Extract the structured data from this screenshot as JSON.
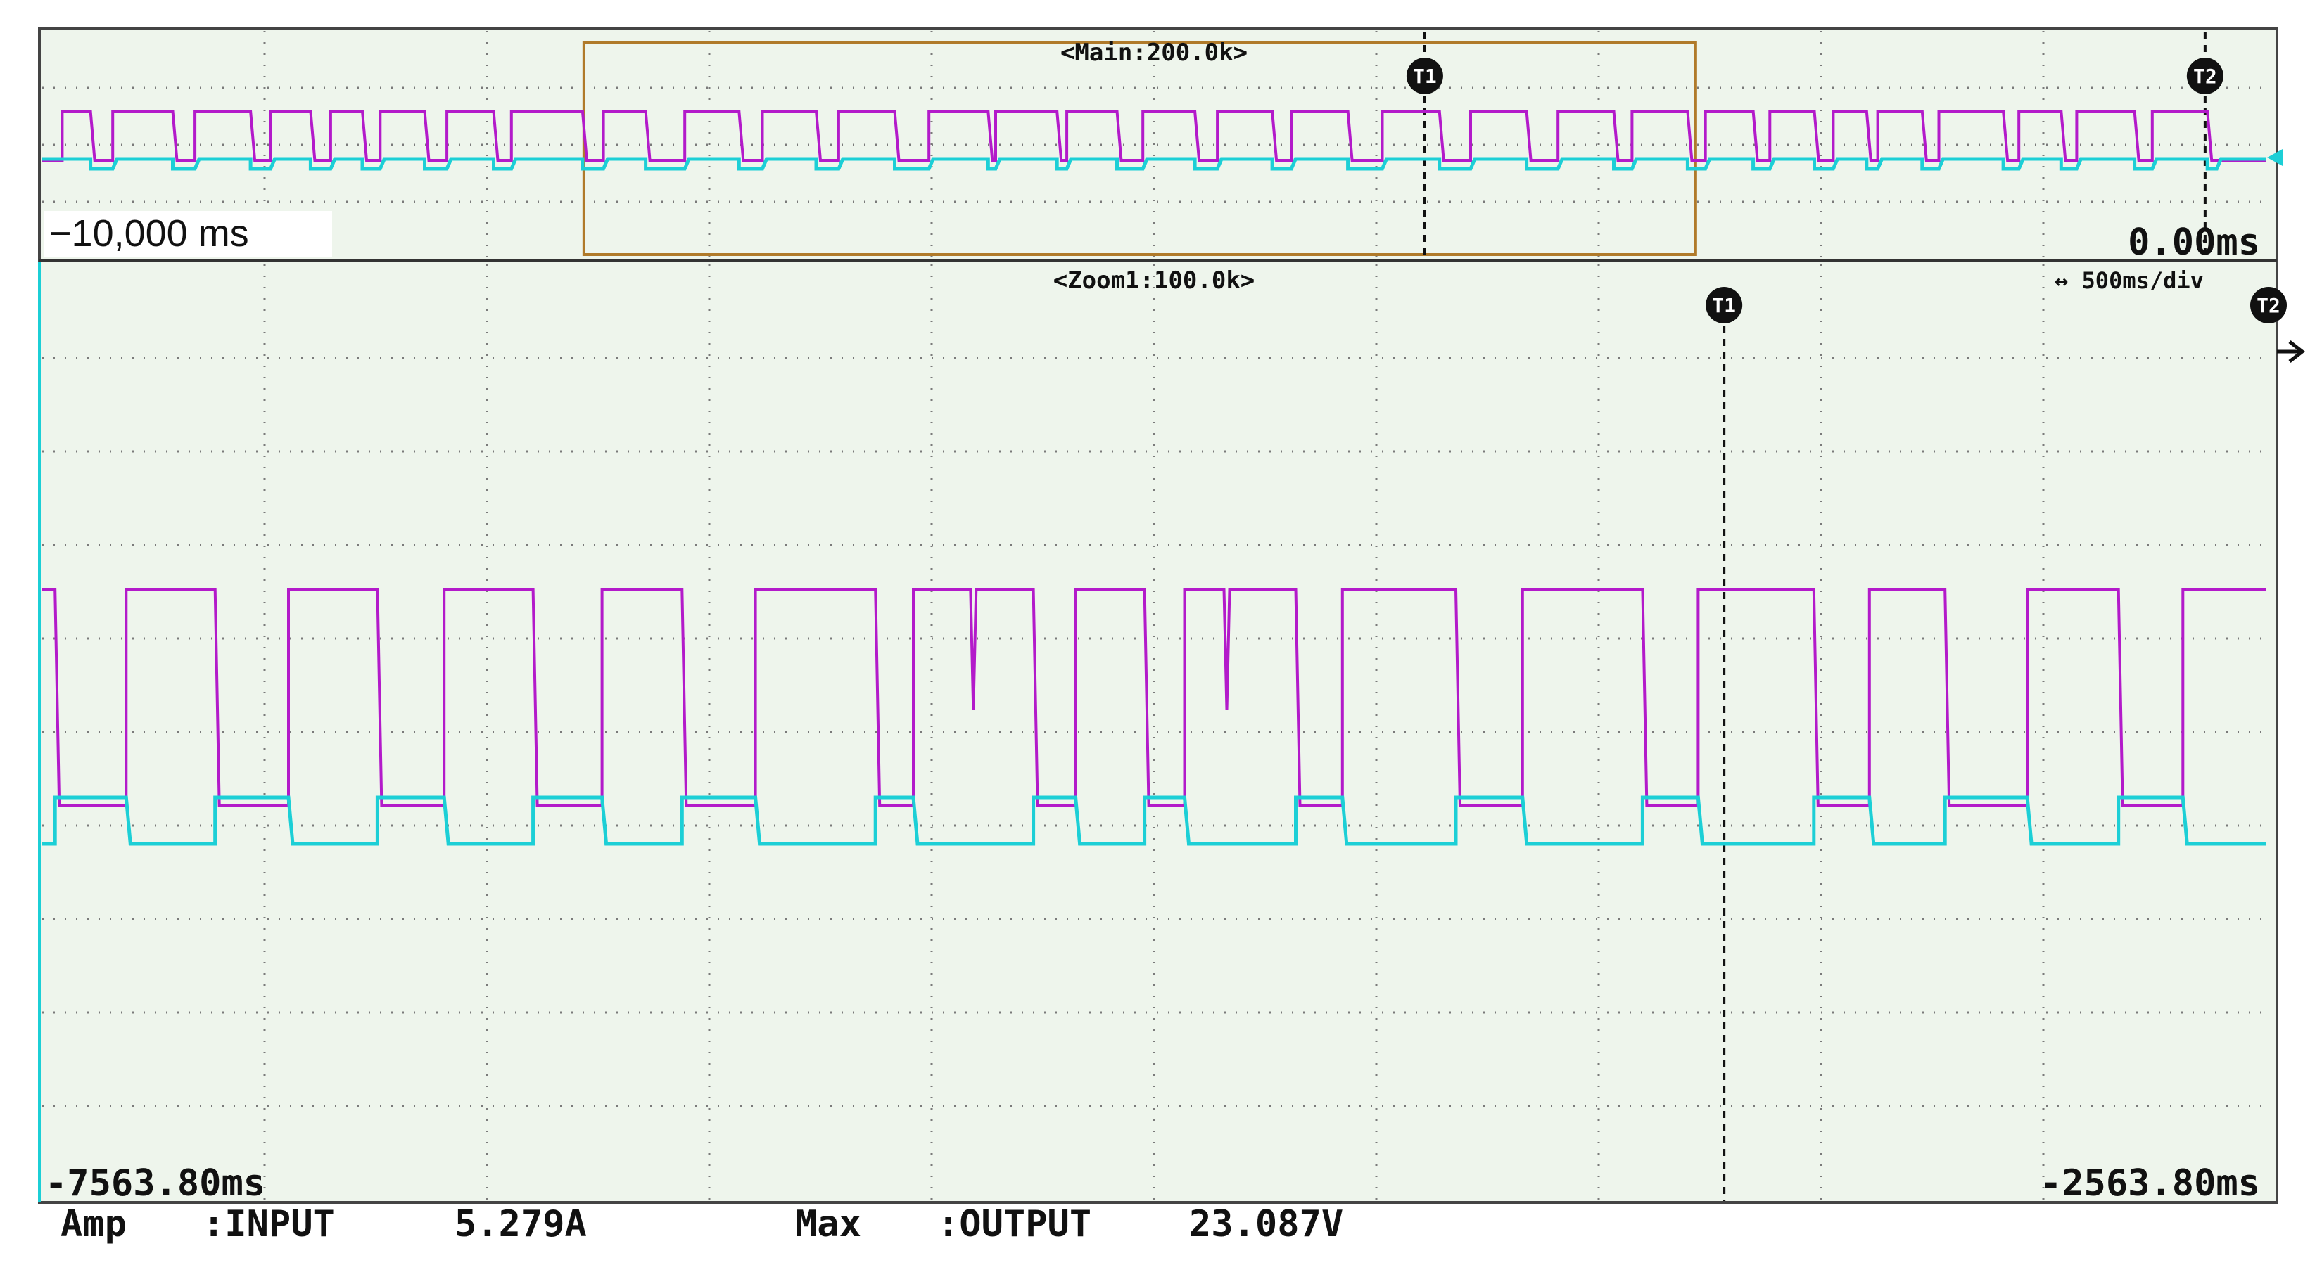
{
  "colors": {
    "screen_bg": "#eef5ec",
    "grid": "#7a7a7a",
    "ch_magenta": "#b31aca",
    "ch_cyan": "#1ccfd6",
    "zoom_box": "#b07a2a",
    "border": "#444444"
  },
  "main": {
    "header": "<Main:200.0k>",
    "left_time": "−10,000 ms",
    "right_time": "0.00ms",
    "cursor1": "T1",
    "cursor2": "T2"
  },
  "zoom": {
    "header": "<Zoom1:100.0k>",
    "timebase": "500ms/div",
    "left_time": "-7563.80ms",
    "right_time": "-2563.80ms",
    "cursor1": "T1",
    "cursor2": "T2"
  },
  "measurements": {
    "m1_label": "Amp",
    "m1_source": ":INPUT",
    "m1_value": "5.279A",
    "m2_label": "Max",
    "m2_source": ":OUTPUT",
    "m2_value": "23.087V"
  },
  "chart_data": [
    {
      "type": "line",
      "title": "<Main:200.0k>",
      "x_range_ms": [
        -10000,
        0
      ],
      "zoom_window_ms": [
        -7563.8,
        -2563.8
      ],
      "cursor_T1_ms": -3781.9,
      "cursor_T2_ms": -272.6,
      "grid": true,
      "series": [
        {
          "color": "#b31aca",
          "levels": {
            "high": 1,
            "low": 0
          },
          "pulses_ms": [
            [
              -9910,
              -9783
            ],
            [
              -9683,
              -9413
            ],
            [
              -9313,
              -9063
            ],
            [
              -8973,
              -8793
            ],
            [
              -8703,
              -8560
            ],
            [
              -8480,
              -8280
            ],
            [
              -8180,
              -7970
            ],
            [
              -7890,
              -7570
            ],
            [
              -7476,
              -7286
            ],
            [
              -7110,
              -6866
            ],
            [
              -6761,
              -6519
            ],
            [
              -6418,
              -6166
            ],
            [
              -6012,
              -5746
            ],
            [
              -5712,
              -5436
            ],
            [
              -5392,
              -5166
            ],
            [
              -5050,
              -4816
            ],
            [
              -4715,
              -4468
            ],
            [
              -4382,
              -4128
            ],
            [
              -3973,
              -3716
            ],
            [
              -3576,
              -3324
            ],
            [
              -3183,
              -2932
            ],
            [
              -2850,
              -2600
            ],
            [
              -2520,
              -2305
            ],
            [
              -2230,
              -2030
            ],
            [
              -1945,
              -1795
            ],
            [
              -1745,
              -1545
            ],
            [
              -1470,
              -1180
            ],
            [
              -1110,
              -920
            ],
            [
              -850,
              -590
            ],
            [
              -510,
              -262
            ]
          ]
        },
        {
          "color": "#1ccfd6",
          "levels": {
            "high": 0,
            "low": -0.25
          },
          "dips_ms": [
            [
              -9783,
              -9683
            ],
            [
              -9413,
              -9313
            ],
            [
              -9063,
              -8973
            ],
            [
              -8793,
              -8703
            ],
            [
              -8560,
              -8480
            ],
            [
              -8280,
              -8180
            ],
            [
              -7970,
              -7890
            ],
            [
              -7570,
              -7476
            ],
            [
              -7286,
              -7110
            ],
            [
              -6866,
              -6761
            ],
            [
              -6519,
              -6418
            ],
            [
              -6166,
              -6012
            ],
            [
              -5746,
              -5712
            ],
            [
              -5436,
              -5392
            ],
            [
              -5166,
              -5050
            ],
            [
              -4816,
              -4715
            ],
            [
              -4468,
              -4382
            ],
            [
              -4128,
              -3973
            ],
            [
              -3716,
              -3576
            ],
            [
              -3324,
              -3183
            ],
            [
              -2932,
              -2850
            ],
            [
              -2600,
              -2520
            ],
            [
              -2305,
              -2230
            ],
            [
              -2030,
              -1945
            ],
            [
              -1795,
              -1745
            ],
            [
              -1545,
              -1470
            ],
            [
              -1180,
              -1110
            ],
            [
              -920,
              -850
            ],
            [
              -590,
              -510
            ],
            [
              -262,
              -220
            ]
          ]
        }
      ]
    },
    {
      "type": "line",
      "title": "<Zoom1:100.0k>",
      "x_range_ms": [
        -7563.8,
        -2563.8
      ],
      "x_tick_step_ms": 500,
      "cursor_T1_ms": -3781.9,
      "grid": true,
      "series": [
        {
          "color": "#b31aca",
          "levels": {
            "high": 1,
            "low": 0
          },
          "pulses_ms": [
            [
              -7563.8,
              -7535
            ],
            [
              -7375,
              -7175
            ],
            [
              -7010,
              -6810
            ],
            [
              -6660,
              -6460
            ],
            [
              -6305,
              -6125
            ],
            [
              -5960,
              -5690
            ],
            [
              -5605,
              -5335
            ],
            [
              -5240,
              -5085
            ],
            [
              -4995,
              -4745
            ],
            [
              -4640,
              -4385
            ],
            [
              -4235,
              -3965
            ],
            [
              -3840,
              -3580
            ],
            [
              -3455,
              -3285
            ],
            [
              -3100,
              -2895
            ],
            [
              -2750,
              -2563.8
            ]
          ],
          "spikes_ms": [
            -5470,
            -4900
          ]
        },
        {
          "color": "#1ccfd6",
          "levels": {
            "high": 0,
            "low": -0.21
          },
          "dips_ms": [
            [
              -7535,
              -7375
            ],
            [
              -7175,
              -7010
            ],
            [
              -6810,
              -6660
            ],
            [
              -6460,
              -6305
            ],
            [
              -6125,
              -5960
            ],
            [
              -5690,
              -5605
            ],
            [
              -5335,
              -5240
            ],
            [
              -5085,
              -4995
            ],
            [
              -4745,
              -4640
            ],
            [
              -4385,
              -4235
            ],
            [
              -3965,
              -3840
            ],
            [
              -3580,
              -3455
            ],
            [
              -3285,
              -3100
            ],
            [
              -2895,
              -2750
            ]
          ]
        }
      ]
    }
  ]
}
